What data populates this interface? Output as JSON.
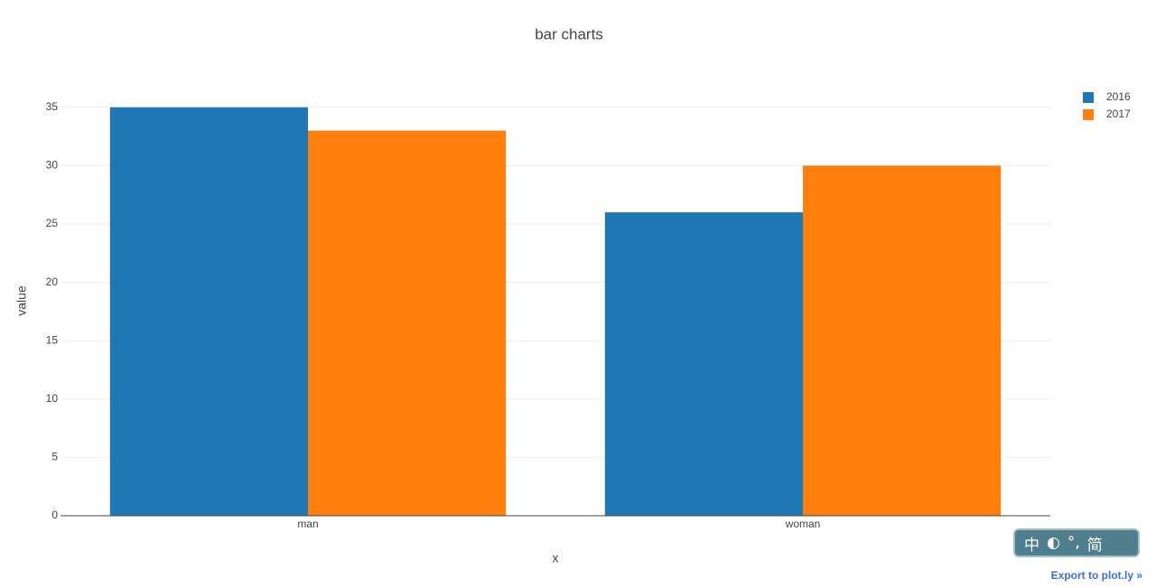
{
  "chart_data": {
    "type": "bar",
    "title": "bar charts",
    "x_label": "x",
    "y_label": "value",
    "categories": [
      "man",
      "woman"
    ],
    "series": [
      {
        "name": "2016",
        "color": "#1f77b4",
        "values": [
          35,
          26
        ]
      },
      {
        "name": "2017",
        "color": "#ff7f0e",
        "values": [
          33,
          30
        ]
      }
    ],
    "ylim": [
      0,
      36.84
    ],
    "yticks": [
      0,
      5,
      10,
      15,
      20,
      25,
      30,
      35
    ],
    "grid": true,
    "legend": "top-right"
  },
  "ime_toolbar": [
    "中",
    "简"
  ],
  "export_link": "Export to plot.ly »"
}
